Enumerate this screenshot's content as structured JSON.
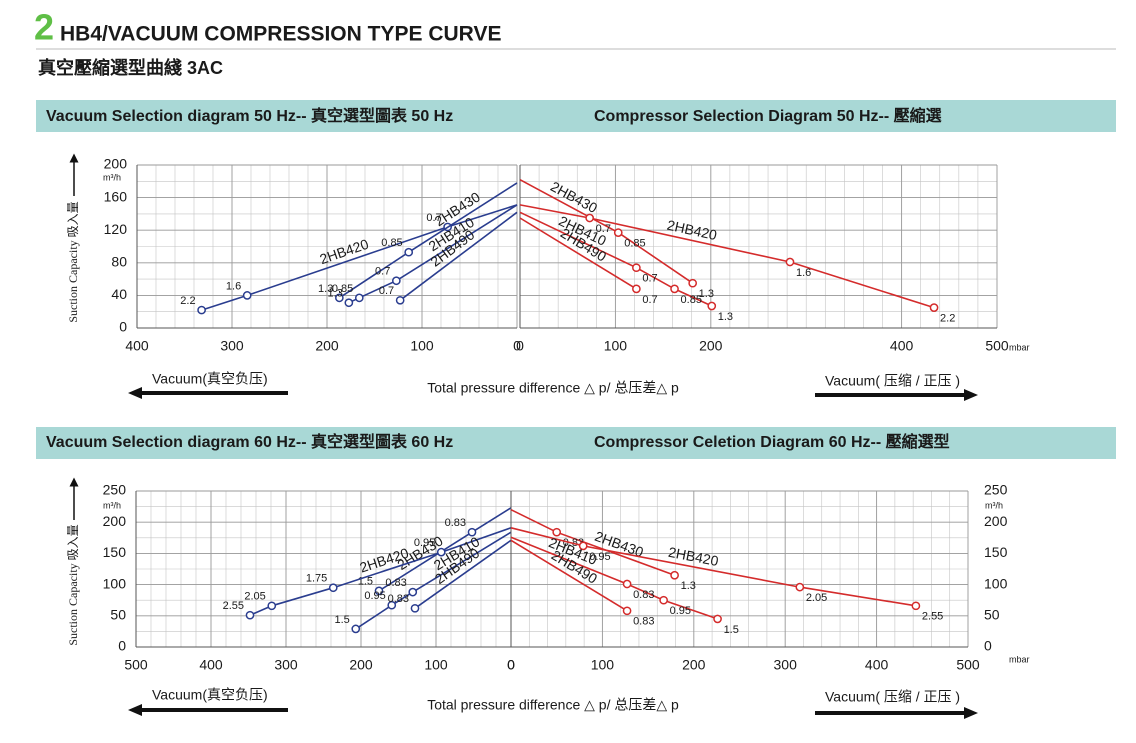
{
  "header": {
    "number": "2",
    "title": "HB4/VACUUM COMPRESSION TYPE CURVE",
    "subtitle": "真空壓縮選型曲綫 3AC"
  },
  "sections": [
    {
      "left_title": "Vacuum Selection diagram 50 Hz-- 真空選型圖表 50 Hz",
      "right_title": "Compressor Selection Diagram 50 Hz-- 壓縮選",
      "y_label": "Suction  Capacity 吸入量",
      "y_unit": "m³/h",
      "x_unit": "mbar",
      "left_arrow_label": "Vacuum(真空负压)",
      "center_label": "Total pressure difference △ p/ 总压差△ p",
      "right_arrow_label": "Vacuum( 压缩 / 正压 )"
    },
    {
      "left_title": "Vacuum Selection diagram 60 Hz-- 真空選型圖表 60 Hz",
      "right_title": "Compressor Celetion Diagram 60 Hz-- 壓縮選型",
      "y_label": "Suction  Capacity 吸入量",
      "y_unit": "m³/h",
      "y_unit_right": "m³/h",
      "x_unit": "mbar",
      "left_arrow_label": "Vacuum(真空负压)",
      "center_label": "Total pressure difference △ p/ 总压差△ p",
      "right_arrow_label": "Vacuum( 压缩 / 正压 )"
    }
  ],
  "chart_data": [
    {
      "type": "line",
      "grid": true,
      "ytick_side": "left",
      "xlim": [
        400,
        0
      ],
      "xticks": [
        400,
        300,
        200,
        100,
        0
      ],
      "ylim": [
        0,
        200
      ],
      "yticks": [
        0,
        40,
        80,
        120,
        160,
        200
      ],
      "series": [
        {
          "name": "2HB420",
          "color": "#2a3d8f",
          "x": [
            0,
            73,
            284,
            332
          ],
          "values": [
            151,
            124,
            40,
            22
          ],
          "point_labels": [
            null,
            "0.7",
            "1.6",
            "2.2"
          ]
        },
        {
          "name": "2HB430",
          "color": "#2a3d8f",
          "x": [
            0,
            114,
            187
          ],
          "values": [
            178,
            93,
            37
          ],
          "point_labels": [
            null,
            "0.85",
            "1.3"
          ]
        },
        {
          "name": "2HB410",
          "color": "#2a3d8f",
          "x": [
            0,
            127,
            166,
            177
          ],
          "values": [
            151,
            58,
            37,
            31
          ],
          "point_labels": [
            null,
            "0.7",
            "0.85",
            "1.3"
          ]
        },
        {
          "name": "2HB490",
          "color": "#2a3d8f",
          "x": [
            0,
            123
          ],
          "values": [
            142,
            34
          ],
          "point_labels": [
            null,
            "0.7"
          ]
        }
      ]
    },
    {
      "type": "line",
      "grid": true,
      "ytick_side": "none",
      "xlim": [
        0,
        500
      ],
      "xticks": [
        0,
        100,
        200,
        400,
        500
      ],
      "ylim": [
        0,
        200
      ],
      "yticks": [
        0,
        40,
        80,
        120,
        160,
        200
      ],
      "series": [
        {
          "name": "2HB430",
          "color": "#d42b2b",
          "x": [
            0,
            103,
            181
          ],
          "values": [
            182,
            117,
            55
          ],
          "point_labels": [
            null,
            "0.85",
            "1.3"
          ]
        },
        {
          "name": "2HB420",
          "color": "#d42b2b",
          "x": [
            0,
            73,
            283,
            434
          ],
          "values": [
            151,
            135,
            81,
            25
          ],
          "point_labels": [
            null,
            "0.7",
            "1.6",
            "2.2"
          ]
        },
        {
          "name": "2HB410",
          "color": "#d42b2b",
          "x": [
            0,
            122,
            162,
            201
          ],
          "values": [
            142,
            74,
            48,
            27
          ],
          "point_labels": [
            null,
            "0.7",
            "0.85",
            "1.3"
          ]
        },
        {
          "name": "2HB490",
          "color": "#d42b2b",
          "x": [
            0,
            122
          ],
          "values": [
            135,
            48
          ],
          "point_labels": [
            null,
            "0.7"
          ]
        }
      ]
    },
    {
      "type": "line",
      "grid": true,
      "ytick_side": "left",
      "xlim": [
        500,
        0
      ],
      "xticks": [
        500,
        400,
        300,
        200,
        100,
        0
      ],
      "ylim": [
        0,
        250
      ],
      "yticks": [
        0,
        50,
        100,
        150,
        200,
        250
      ],
      "series": [
        {
          "name": "2HB430",
          "color": "#2a3d8f",
          "x": [
            0,
            52,
            176
          ],
          "values": [
            223,
            184,
            90
          ],
          "point_labels": [
            null,
            "0.83",
            "1.5"
          ]
        },
        {
          "name": "2HB420",
          "color": "#2a3d8f",
          "x": [
            0,
            93,
            237,
            319,
            348
          ],
          "values": [
            191,
            152,
            95,
            66,
            51
          ],
          "point_labels": [
            null,
            "0.95",
            "1.75",
            "2.05",
            "2.55"
          ]
        },
        {
          "name": "2HB410",
          "color": "#2a3d8f",
          "x": [
            0,
            131,
            159,
            207
          ],
          "values": [
            184,
            88,
            67,
            29
          ],
          "point_labels": [
            null,
            "0.83",
            "0.95",
            "1.5"
          ]
        },
        {
          "name": "2HB490",
          "color": "#2a3d8f",
          "x": [
            0,
            128
          ],
          "values": [
            171,
            62
          ],
          "point_labels": [
            null,
            "0.83"
          ]
        }
      ]
    },
    {
      "type": "line",
      "grid": true,
      "ytick_side": "right",
      "xlim": [
        0,
        500
      ],
      "xticks": [
        0,
        100,
        200,
        300,
        400,
        500
      ],
      "ylim": [
        0,
        250
      ],
      "yticks": [
        0,
        50,
        100,
        150,
        200,
        250
      ],
      "series": [
        {
          "name": "2HB430",
          "color": "#d42b2b",
          "x": [
            0,
            50,
            179
          ],
          "values": [
            220,
            184,
            115
          ],
          "point_labels": [
            null,
            "0.83",
            "1.3"
          ]
        },
        {
          "name": "2HB420",
          "color": "#d42b2b",
          "x": [
            0,
            79,
            316,
            443
          ],
          "values": [
            191,
            162,
            96,
            66
          ],
          "point_labels": [
            null,
            "0.95",
            "2.05",
            "2.55"
          ]
        },
        {
          "name": "2HB410",
          "color": "#d42b2b",
          "x": [
            0,
            127,
            167,
            226
          ],
          "values": [
            176,
            101,
            75,
            45
          ],
          "point_labels": [
            null,
            "0.83",
            "0.95",
            "1.5"
          ]
        },
        {
          "name": "2HB490",
          "color": "#d42b2b",
          "x": [
            0,
            127
          ],
          "values": [
            171,
            58
          ],
          "point_labels": [
            null,
            "0.83"
          ]
        }
      ]
    }
  ]
}
